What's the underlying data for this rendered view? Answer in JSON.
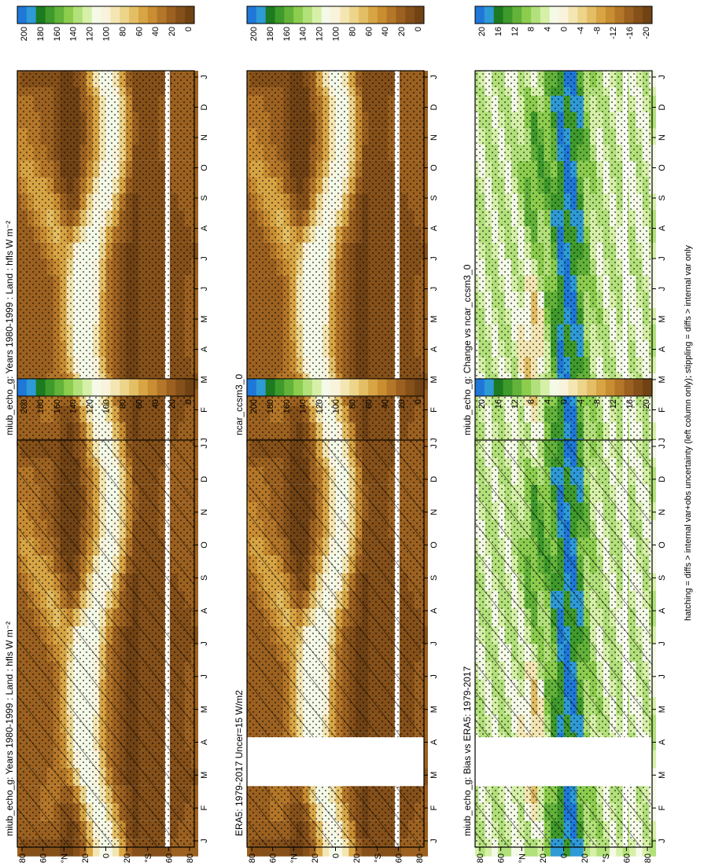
{
  "figure": {
    "footer": "hatching = diffs > internal var+obs uncertainty (left column only); stippling = diffs > internal var only"
  },
  "colorbars": {
    "absolute": {
      "labels": [
        "200",
        "180",
        "160",
        "140",
        "120",
        "100",
        "80",
        "60",
        "40",
        "20",
        "0"
      ],
      "colors": [
        "#1f78d8",
        "#2e9ad6",
        "#1c7a20",
        "#3f9a2c",
        "#63b33a",
        "#8ccd4e",
        "#b2e07a",
        "#d6f0a8",
        "#f4f9e8",
        "#f9f3dc",
        "#f4e6b3",
        "#ecd48a",
        "#e3be65",
        "#d8a544",
        "#c98d32",
        "#b47628",
        "#9c6120",
        "#855019",
        "#704214"
      ]
    },
    "difference": {
      "labels": [
        "20",
        "16",
        "12",
        "8",
        "4",
        "0",
        "-4",
        "-8",
        "-12",
        "-16",
        "-20"
      ],
      "colors": [
        "#1f78d8",
        "#2e9ad6",
        "#1c7a20",
        "#3f9a2c",
        "#63b33a",
        "#8ccd4e",
        "#b2e07a",
        "#d6f0a8",
        "#f4f9e8",
        "#f9f3dc",
        "#f4e6b3",
        "#ecd48a",
        "#e3be65",
        "#d8a544",
        "#c98d32",
        "#b47628",
        "#9c6120",
        "#855019",
        "#704214"
      ]
    }
  },
  "chart_data": [
    {
      "type": "heatmap",
      "title": "miub_echo_g: Years 1980-1999 : Land : hfls W m⁻²",
      "xlabel": "",
      "ylabel": "",
      "x_ticks": [
        "J",
        "F",
        "M",
        "A",
        "M",
        "J",
        "J",
        "A",
        "S",
        "O",
        "N",
        "D",
        "J"
      ],
      "y_ticks": [
        "80",
        "60",
        "°N",
        "20",
        "0",
        "20",
        "°S",
        "60",
        "80"
      ],
      "colorbar": "absolute",
      "variant": "annual",
      "hatching": false
    },
    {
      "type": "heatmap",
      "title": "ncar_ccsm3_0",
      "xlabel": "",
      "ylabel": "",
      "x_ticks": [
        "J",
        "F",
        "M",
        "A",
        "M",
        "J",
        "J",
        "A",
        "S",
        "O",
        "N",
        "D",
        "J"
      ],
      "y_ticks": [
        "80",
        "60",
        "°N",
        "20",
        "0",
        "20",
        "°S",
        "60",
        "80"
      ],
      "colorbar": "absolute",
      "variant": "annual",
      "hatching": false
    },
    {
      "type": "heatmap",
      "title": "miub_echo_g: Change vs ncar_ccsm3_0",
      "xlabel": "",
      "ylabel": "",
      "x_ticks": [
        "J",
        "F",
        "M",
        "A",
        "M",
        "J",
        "J",
        "A",
        "S",
        "O",
        "N",
        "D",
        "J"
      ],
      "y_ticks": [
        "80",
        "60",
        "°N",
        "20",
        "0",
        "20",
        "°S",
        "60",
        "80"
      ],
      "colorbar": "difference",
      "variant": "change",
      "hatching": false
    },
    {
      "type": "heatmap",
      "title": "miub_echo_g: Years 1980-1999 : Land : hfls W m⁻²",
      "xlabel": "",
      "ylabel": "",
      "x_ticks": [
        "J",
        "F",
        "M",
        "A",
        "M",
        "J",
        "J",
        "A",
        "S",
        "O",
        "N",
        "D",
        "J"
      ],
      "y_ticks": [
        "80",
        "60",
        "°N",
        "20",
        "0",
        "20",
        "°S",
        "60",
        "80"
      ],
      "colorbar": "absolute",
      "variant": "annual",
      "hatching": true
    },
    {
      "type": "heatmap",
      "title": "ERA5: 1979-2017 Uncer=15 W/m2",
      "xlabel": "",
      "ylabel": "",
      "x_ticks": [
        "J",
        "F",
        "M",
        "A",
        "M",
        "J",
        "J",
        "A",
        "S",
        "O",
        "N",
        "D",
        "J"
      ],
      "y_ticks": [
        "80",
        "60",
        "°N",
        "20",
        "0",
        "20",
        "°S",
        "60",
        "80"
      ],
      "colorbar": "absolute",
      "variant": "era5",
      "hatching": true
    },
    {
      "type": "heatmap",
      "title": "miub_echo_g: Bias vs ERA5: 1979-2017",
      "xlabel": "",
      "ylabel": "",
      "x_ticks": [
        "J",
        "F",
        "M",
        "A",
        "M",
        "J",
        "J",
        "A",
        "S",
        "O",
        "N",
        "D",
        "J"
      ],
      "y_ticks": [
        "80",
        "60",
        "°N",
        "20",
        "0",
        "20",
        "°S",
        "60",
        "80"
      ],
      "colorbar": "difference",
      "variant": "bias",
      "hatching": true
    }
  ]
}
